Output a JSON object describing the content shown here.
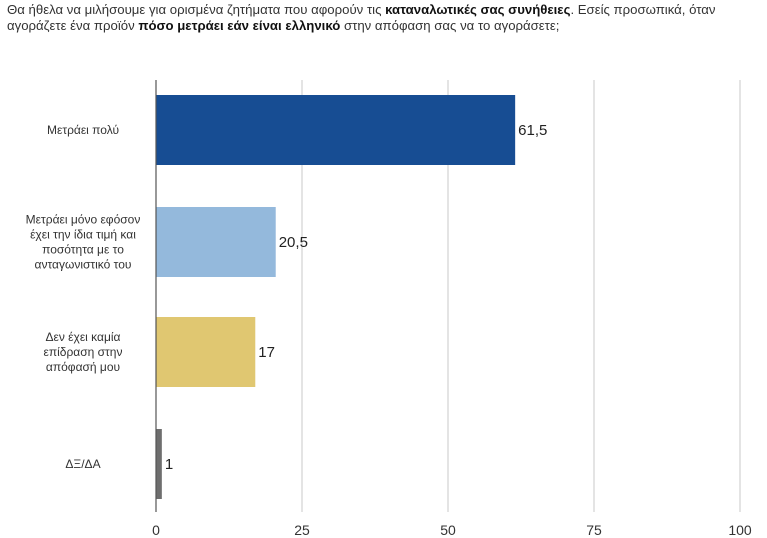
{
  "question": {
    "part1": "Θα ήθελα να μιλήσουμε για ορισμένα ζητήματα που αφορούν τις ",
    "bold1": "καταναλωτικές σας συνήθειες",
    "part2": ". Εσείς προσωπικά, όταν αγοράζετε ένα προϊόν ",
    "bold2": "πόσο μετράει εάν είναι ελληνικό",
    "part3": " στην απόφαση σας να το αγοράσετε;"
  },
  "chart_data": {
    "type": "bar",
    "orientation": "horizontal",
    "title": "",
    "xlabel": "",
    "ylabel": "",
    "xlim": [
      0,
      100
    ],
    "x_ticks": [
      "0",
      "25",
      "50",
      "75",
      "100"
    ],
    "grid": true,
    "categories": [
      [
        "Μετράει πολύ"
      ],
      [
        "Μετράει μόνο εφόσον",
        "έχει την ίδια τιμή και",
        "ποσότητα με το",
        "ανταγωνιστικό του"
      ],
      [
        "Δεν έχει καμία",
        "επίδραση στην",
        "απόφασή μου"
      ],
      [
        "ΔΞ/ΔΑ"
      ]
    ],
    "values": [
      61.5,
      20.5,
      17,
      1
    ],
    "value_labels": [
      "61,5",
      "20,5",
      "17",
      "1"
    ],
    "colors": [
      "#174d93",
      "#94b9dc",
      "#e0c771",
      "#6e6e6e"
    ]
  }
}
